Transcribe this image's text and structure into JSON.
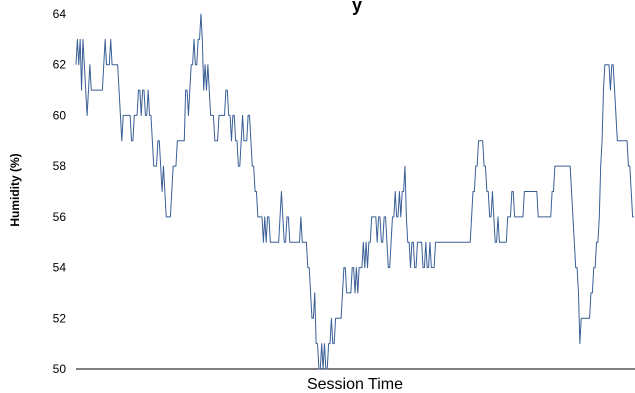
{
  "chart_data": {
    "type": "line",
    "title": "y",
    "xlabel": "Session Time",
    "ylabel": "Humidity (%)",
    "ylim": [
      50,
      64
    ],
    "yticks": [
      50,
      52,
      54,
      56,
      58,
      60,
      62,
      64
    ],
    "grid": false,
    "legend": "none",
    "series": [
      {
        "color": "#3a5f96",
        "values": [
          62,
          63,
          62,
          63,
          61,
          63,
          62,
          61,
          60,
          61,
          62,
          61,
          61,
          61,
          61,
          61,
          61,
          61,
          61,
          61,
          62,
          63,
          62,
          62,
          62,
          63,
          62,
          62,
          62,
          62,
          62,
          61,
          60,
          59,
          60,
          60,
          60,
          60,
          60,
          60,
          59,
          59,
          60,
          60,
          60,
          61,
          61,
          60,
          61,
          61,
          60,
          60,
          61,
          60,
          60,
          59,
          58,
          58,
          58,
          59,
          59,
          58,
          57,
          58,
          57,
          56,
          56,
          56,
          56,
          57,
          58,
          58,
          58,
          59,
          59,
          59,
          59,
          59,
          59,
          61,
          61,
          60,
          61,
          62,
          62,
          63,
          62,
          62,
          63,
          63,
          64,
          63,
          61,
          62,
          61,
          62,
          61,
          60,
          60,
          60,
          59,
          59,
          59,
          60,
          60,
          60,
          60,
          60,
          61,
          61,
          60,
          60,
          59,
          60,
          60,
          59,
          59,
          58,
          58,
          59,
          60,
          59,
          59,
          59,
          60,
          60,
          59,
          58,
          58,
          57,
          57,
          56,
          56,
          56,
          56,
          55,
          56,
          55,
          56,
          56,
          55,
          55,
          55,
          55,
          55,
          55,
          55,
          56,
          57,
          56,
          55,
          55,
          56,
          56,
          55,
          55,
          55,
          55,
          55,
          55,
          55,
          55,
          56,
          55,
          55,
          55,
          55,
          54,
          54,
          53,
          52,
          52,
          53,
          51,
          51,
          50,
          50,
          51,
          50,
          51,
          50,
          50,
          51,
          51,
          52,
          51,
          51,
          52,
          52,
          52,
          52,
          52,
          53,
          54,
          54,
          53,
          53,
          53,
          53,
          54,
          54,
          53,
          54,
          53,
          54,
          54,
          54,
          55,
          54,
          55,
          54,
          55,
          55,
          56,
          56,
          56,
          56,
          55,
          56,
          56,
          55,
          55,
          56,
          56,
          55,
          54,
          54,
          55,
          56,
          56,
          57,
          56,
          56,
          57,
          56,
          57,
          57,
          58,
          56,
          55,
          55,
          54,
          55,
          55,
          54,
          54,
          55,
          55,
          55,
          55,
          54,
          54,
          55,
          54,
          54,
          55,
          54,
          54,
          54,
          55,
          55,
          55,
          55,
          55,
          55,
          55,
          55,
          55,
          55,
          55,
          55,
          55,
          55,
          55,
          55,
          55,
          55,
          55,
          55,
          55,
          55,
          55,
          55,
          55,
          55,
          56,
          57,
          57,
          58,
          58,
          59,
          59,
          59,
          59,
          58,
          58,
          57,
          57,
          56,
          56,
          57,
          56,
          55,
          55,
          56,
          55,
          55,
          55,
          55,
          55,
          55,
          56,
          56,
          56,
          57,
          57,
          56,
          56,
          56,
          56,
          56,
          56,
          56,
          57,
          57,
          57,
          57,
          57,
          57,
          57,
          57,
          57,
          57,
          56,
          56,
          56,
          56,
          56,
          56,
          56,
          56,
          56,
          56,
          57,
          57,
          58,
          58,
          58,
          58,
          58,
          58,
          58,
          58,
          58,
          58,
          58,
          58,
          57,
          56,
          55,
          54,
          54,
          53,
          51,
          52,
          52,
          52,
          52,
          52,
          52,
          52,
          53,
          53,
          54,
          54,
          55,
          55,
          56,
          58,
          59,
          61,
          62,
          62,
          62,
          62,
          61,
          62,
          62,
          61,
          60,
          59,
          59,
          59,
          59,
          59,
          59,
          59,
          59,
          58,
          58,
          57,
          56,
          56
        ]
      }
    ]
  }
}
